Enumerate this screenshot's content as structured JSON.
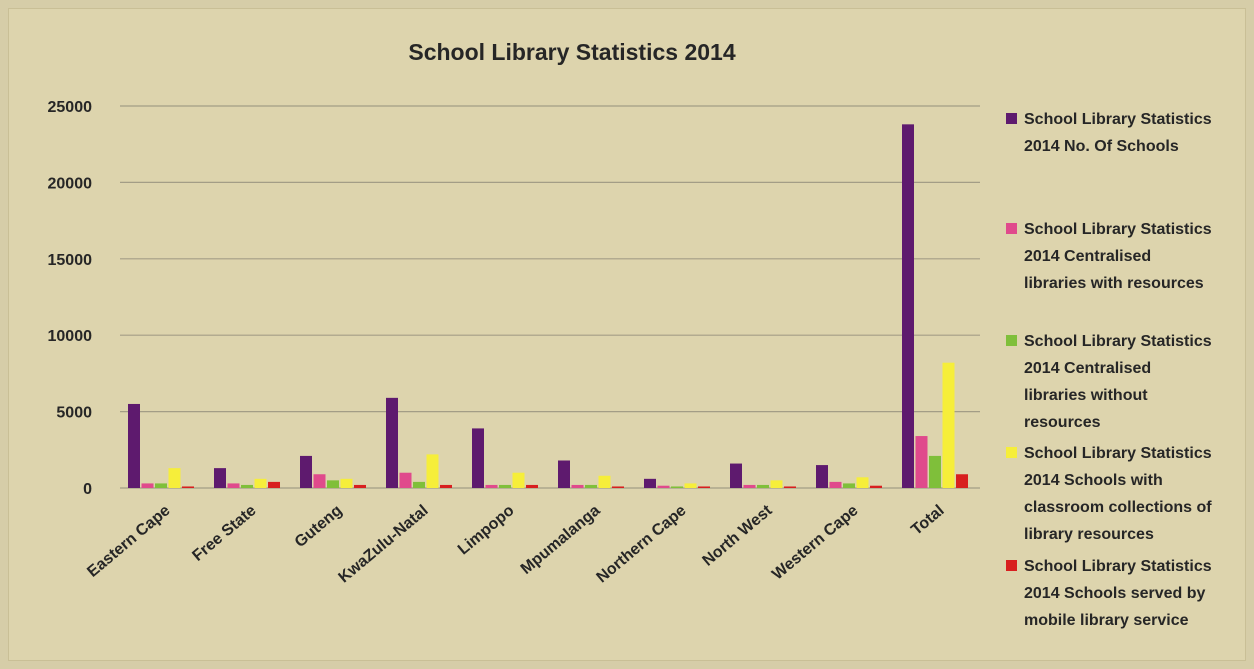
{
  "chart_data": {
    "type": "bar",
    "title": "School Library Statistics 2014",
    "xlabel": "",
    "ylabel": "",
    "ylim": [
      0,
      25000
    ],
    "yticks": [
      "0",
      "5000",
      "10000",
      "15000",
      "20000",
      "25000"
    ],
    "grid": true,
    "legend_position": "right",
    "categories": [
      "Eastern Cape",
      "Free State",
      "Guteng",
      "KwaZulu-Natal",
      "Limpopo",
      "Mpumalanga",
      "Northern Cape",
      "North West",
      "Western Cape",
      "Total"
    ],
    "series": [
      {
        "name": "School Library Statistics 2014 No. Of Schools",
        "legend_lines": [
          "School Library Statistics",
          "2014 No. Of Schools"
        ],
        "color": "#5e1a6e",
        "values": [
          5500,
          1300,
          2100,
          5900,
          3900,
          1800,
          600,
          1600,
          1500,
          23800
        ]
      },
      {
        "name": "School Library Statistics 2014 Centralised libraries with resources",
        "legend_lines": [
          "School Library Statistics",
          "2014 Centralised",
          "libraries with resources"
        ],
        "color": "#e04a8c",
        "values": [
          300,
          300,
          900,
          1000,
          200,
          200,
          150,
          200,
          400,
          3400
        ]
      },
      {
        "name": "School Library Statistics 2014 Centralised libraries without resources",
        "legend_lines": [
          "School Library Statistics",
          "2014 Centralised",
          "libraries without",
          "resources"
        ],
        "color": "#7fbf3a",
        "values": [
          300,
          200,
          500,
          400,
          200,
          200,
          100,
          200,
          300,
          2100
        ]
      },
      {
        "name": "School Library Statistics 2014 Schools with classroom collections of library resources",
        "legend_lines": [
          "School Library Statistics",
          "2014 Schools with",
          "classroom collections of",
          "library resources"
        ],
        "color": "#f6ee3a",
        "values": [
          1300,
          600,
          600,
          2200,
          1000,
          800,
          300,
          500,
          700,
          8200
        ]
      },
      {
        "name": "School Library Statistics 2014 Schools served by mobile library service",
        "legend_lines": [
          "School Library Statistics",
          "2014 Schools served by",
          "mobile library service"
        ],
        "color": "#d81f1f",
        "values": [
          100,
          400,
          200,
          200,
          200,
          100,
          100,
          100,
          150,
          900
        ]
      }
    ]
  }
}
